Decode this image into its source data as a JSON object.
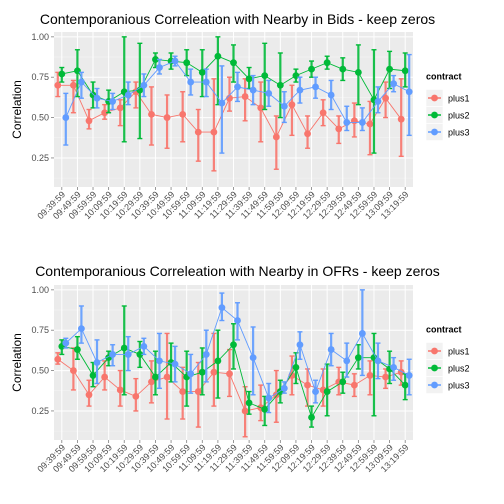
{
  "colors": {
    "plus1": "#F8766D",
    "plus2": "#00BA38",
    "plus3": "#619CFF",
    "panel_bg": "#ebebeb",
    "grid": "#ffffff"
  },
  "chart_data": [
    {
      "type": "line",
      "title": "Contemporanious Correleation with Nearby in Bids - keep zeros",
      "xlabel": "",
      "ylabel": "Correlation",
      "ylim": [
        0.07,
        1.03
      ],
      "yticks": [
        "0.25",
        "0.50",
        "0.75",
        "1.00"
      ],
      "grid": true,
      "x": [
        "09:39:59",
        "09:49:59",
        "09:59:59",
        "10:09:59",
        "10:19:59",
        "10:29:59",
        "10:39:59",
        "10:49:59",
        "10:59:59",
        "11:09:59",
        "11:19:59",
        "11:29:59",
        "11:39:59",
        "11:49:59",
        "11:59:59",
        "12:09:59",
        "12:19:59",
        "12:29:59",
        "12:39:59",
        "12:49:59",
        "12:59:59",
        "13:09:59",
        "13:19:59"
      ],
      "legend": {
        "title": "contract",
        "position": "right",
        "entries": [
          "plus1",
          "plus2",
          "plus3"
        ]
      },
      "series": [
        {
          "name": "plus1",
          "values": [
            0.7,
            0.7,
            0.48,
            0.53,
            0.56,
            0.66,
            0.52,
            0.5,
            0.52,
            0.41,
            0.41,
            0.62,
            0.63,
            0.56,
            0.38,
            0.58,
            0.4,
            0.53,
            0.43,
            0.48,
            0.46,
            0.62,
            0.49
          ],
          "err_low": [
            0.63,
            0.53,
            0.43,
            0.49,
            0.45,
            0.56,
            0.33,
            0.31,
            0.35,
            0.23,
            0.17,
            0.54,
            0.48,
            0.35,
            0.18,
            0.39,
            0.31,
            0.45,
            0.34,
            0.38,
            0.27,
            0.5,
            0.26
          ],
          "err_high": [
            0.78,
            0.73,
            0.55,
            0.58,
            0.61,
            0.72,
            0.69,
            0.64,
            0.66,
            0.55,
            0.74,
            0.75,
            0.74,
            0.72,
            0.51,
            0.7,
            0.51,
            0.61,
            0.51,
            0.59,
            0.6,
            0.72,
            0.74
          ]
        },
        {
          "name": "plus2",
          "values": [
            0.77,
            0.79,
            0.64,
            0.6,
            0.66,
            0.67,
            0.86,
            0.85,
            0.84,
            0.78,
            0.88,
            0.84,
            0.74,
            0.76,
            0.7,
            0.76,
            0.8,
            0.84,
            0.8,
            0.78,
            0.61,
            0.8,
            0.79
          ],
          "err_low": [
            0.72,
            0.63,
            0.56,
            0.53,
            0.35,
            0.37,
            0.81,
            0.8,
            0.76,
            0.63,
            0.58,
            0.72,
            0.68,
            0.55,
            0.5,
            0.72,
            0.75,
            0.8,
            0.73,
            0.58,
            0.28,
            0.68,
            0.69
          ],
          "err_high": [
            0.81,
            0.92,
            0.72,
            0.67,
            1.0,
            0.96,
            0.9,
            0.9,
            0.92,
            0.92,
            1.0,
            0.95,
            0.81,
            0.96,
            0.9,
            0.8,
            0.85,
            0.88,
            0.87,
            0.95,
            0.92,
            0.91,
            0.9
          ]
        },
        {
          "name": "plus3",
          "values": [
            0.5,
            0.72,
            0.62,
            0.6,
            0.64,
            0.7,
            0.81,
            0.85,
            0.72,
            0.72,
            0.59,
            0.69,
            0.67,
            0.65,
            0.57,
            0.67,
            0.69,
            0.64,
            0.47,
            0.47,
            0.6,
            0.71,
            0.66
          ],
          "err_low": [
            0.33,
            0.62,
            0.56,
            0.55,
            0.58,
            0.63,
            0.77,
            0.82,
            0.64,
            0.63,
            0.28,
            0.6,
            0.58,
            0.57,
            0.47,
            0.59,
            0.62,
            0.55,
            0.42,
            0.42,
            0.53,
            0.66,
            0.39
          ],
          "err_high": [
            0.65,
            0.78,
            0.68,
            0.65,
            0.72,
            0.77,
            0.86,
            0.88,
            0.8,
            0.8,
            0.82,
            0.78,
            0.76,
            0.73,
            0.66,
            0.75,
            0.75,
            0.73,
            0.57,
            0.56,
            0.69,
            0.76,
            0.89
          ]
        }
      ]
    },
    {
      "type": "line",
      "title": "Contemporanious Correleation with Nearby in OFRs - keep zeros",
      "xlabel": "",
      "ylabel": "Correlation",
      "ylim": [
        0.07,
        1.03
      ],
      "yticks": [
        "0.25",
        "0.50",
        "0.75",
        "1.00"
      ],
      "grid": true,
      "x": [
        "09:39:59",
        "09:49:59",
        "09:59:59",
        "10:09:59",
        "10:19:59",
        "10:29:59",
        "10:39:59",
        "10:49:59",
        "10:59:59",
        "11:09:59",
        "11:19:59",
        "11:29:59",
        "11:39:59",
        "11:49:59",
        "11:59:59",
        "12:09:59",
        "12:19:59",
        "12:29:59",
        "12:39:59",
        "12:49:59",
        "12:59:59",
        "13:09:59",
        "13:19:59"
      ],
      "legend": {
        "title": "contract",
        "position": "right",
        "entries": [
          "plus1",
          "plus2",
          "plus3"
        ]
      },
      "series": [
        {
          "name": "plus1",
          "values": [
            0.57,
            0.5,
            0.35,
            0.46,
            0.38,
            0.34,
            0.43,
            0.46,
            0.37,
            0.37,
            0.49,
            0.48,
            0.25,
            0.27,
            0.35,
            0.47,
            0.41,
            0.38,
            0.43,
            0.41,
            0.47,
            0.46,
            0.49
          ],
          "err_low": [
            0.54,
            0.38,
            0.28,
            0.38,
            0.28,
            0.25,
            0.3,
            0.2,
            0.2,
            0.15,
            0.28,
            0.34,
            0.09,
            0.19,
            0.18,
            0.35,
            0.28,
            0.28,
            0.35,
            0.34,
            0.35,
            0.39,
            0.41
          ],
          "err_high": [
            0.61,
            0.64,
            0.44,
            0.56,
            0.5,
            0.45,
            0.56,
            0.73,
            0.52,
            0.55,
            0.73,
            0.63,
            0.4,
            0.41,
            0.5,
            0.59,
            0.51,
            0.51,
            0.52,
            0.48,
            0.56,
            0.51,
            0.56
          ]
        },
        {
          "name": "plus2",
          "values": [
            0.65,
            0.63,
            0.47,
            0.58,
            0.64,
            0.6,
            0.46,
            0.55,
            0.46,
            0.49,
            0.56,
            0.66,
            0.3,
            0.26,
            0.37,
            0.52,
            0.21,
            0.37,
            0.43,
            0.58,
            0.58,
            0.51,
            0.41
          ],
          "err_low": [
            0.6,
            0.57,
            0.4,
            0.53,
            0.35,
            0.52,
            0.35,
            0.43,
            0.28,
            0.35,
            0.33,
            0.51,
            0.23,
            0.16,
            0.3,
            0.42,
            0.15,
            0.22,
            0.36,
            0.51,
            0.22,
            0.42,
            0.32
          ],
          "err_high": [
            0.69,
            0.71,
            0.55,
            0.62,
            0.9,
            0.68,
            0.62,
            0.67,
            0.62,
            0.64,
            0.75,
            0.79,
            0.37,
            0.34,
            0.44,
            0.61,
            0.28,
            0.54,
            0.49,
            0.66,
            0.73,
            0.62,
            0.48
          ]
        },
        {
          "name": "plus3",
          "values": [
            0.67,
            0.76,
            0.55,
            0.6,
            0.6,
            0.65,
            0.56,
            0.54,
            0.48,
            0.6,
            0.89,
            0.81,
            0.58,
            0.33,
            0.39,
            0.66,
            0.37,
            0.63,
            0.56,
            0.73,
            0.56,
            0.52,
            0.47
          ],
          "err_low": [
            0.64,
            0.67,
            0.42,
            0.53,
            0.5,
            0.6,
            0.39,
            0.43,
            0.36,
            0.43,
            0.81,
            0.69,
            0.35,
            0.24,
            0.36,
            0.57,
            0.3,
            0.53,
            0.46,
            0.47,
            0.45,
            0.44,
            0.35
          ],
          "err_high": [
            0.7,
            0.9,
            0.69,
            0.66,
            0.71,
            0.7,
            0.73,
            0.65,
            0.6,
            0.75,
            0.98,
            0.92,
            0.77,
            0.42,
            0.43,
            0.74,
            0.44,
            0.73,
            0.67,
            1.0,
            0.67,
            0.58,
            0.57
          ]
        }
      ]
    }
  ]
}
